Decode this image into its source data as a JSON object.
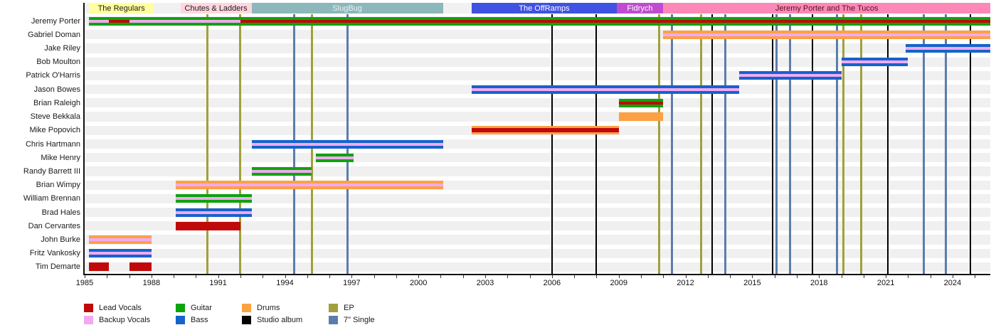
{
  "chart_data": {
    "type": "timeline",
    "description": "Band member tenure timeline with release markers",
    "x_axis": {
      "start_year": 1985,
      "end_year": 2025.7,
      "tick_every_years": 1,
      "year_labels": [
        1985,
        1988,
        1991,
        1994,
        1997,
        2000,
        2003,
        2006,
        2009,
        2012,
        2015,
        2018,
        2021,
        2024
      ]
    },
    "eras": [
      {
        "label": "The Regulars",
        "start": 1985.2,
        "end": 1988.1,
        "bg": "#ffff9e",
        "fg": "#1a1a1a"
      },
      {
        "label": "Chutes & Ladders",
        "start": 1989.3,
        "end": 1992.5,
        "bg": "#ffd6df",
        "fg": "#1a1a1a"
      },
      {
        "label": "SlugBug",
        "start": 1992.5,
        "end": 2001.1,
        "bg": "#8cb7bb",
        "fg": "#eef3f3"
      },
      {
        "label": "The OffRamps",
        "start": 2002.4,
        "end": 2008.9,
        "bg": "#4052e2",
        "fg": "#ffffff"
      },
      {
        "label": "Fidrych",
        "start": 2008.9,
        "end": 2011.0,
        "bg": "#bf4ccf",
        "fg": "#ffffff"
      },
      {
        "label": "Jeremy Porter and The Tucos",
        "start": 2011.0,
        "end": 2025.7,
        "bg": "#fc88b8",
        "fg": "#58121b"
      }
    ],
    "members": [
      {
        "name": "Jeremy Porter",
        "bars": [
          {
            "start": 1985.2,
            "end": 2025.7,
            "role": "guitar"
          }
        ],
        "stripes": [
          {
            "start": 1985.2,
            "end": 1986.1,
            "role": "backup_vocals"
          },
          {
            "start": 1986.1,
            "end": 1987.0,
            "role": "lead_vocals"
          },
          {
            "start": 1987.0,
            "end": 1992.0,
            "role": "backup_vocals"
          },
          {
            "start": 1992.0,
            "end": 2025.7,
            "role": "lead_vocals"
          }
        ]
      },
      {
        "name": "Gabriel Doman",
        "bars": [
          {
            "start": 2011.0,
            "end": 2025.7,
            "role": "drums"
          }
        ],
        "stripes": [
          {
            "start": 2011.0,
            "end": 2025.7,
            "role": "backup_vocals"
          }
        ]
      },
      {
        "name": "Jake Riley",
        "bars": [
          {
            "start": 2021.9,
            "end": 2025.7,
            "role": "bass"
          }
        ],
        "stripes": [
          {
            "start": 2021.9,
            "end": 2025.7,
            "role": "backup_vocals"
          }
        ]
      },
      {
        "name": "Bob Moulton",
        "bars": [
          {
            "start": 2019.0,
            "end": 2022.0,
            "role": "bass"
          }
        ],
        "stripes": [
          {
            "start": 2019.0,
            "end": 2022.0,
            "role": "backup_vocals"
          }
        ]
      },
      {
        "name": "Patrick O'Harris",
        "bars": [
          {
            "start": 2014.4,
            "end": 2019.0,
            "role": "bass"
          }
        ],
        "stripes": [
          {
            "start": 2014.4,
            "end": 2019.0,
            "role": "backup_vocals"
          }
        ]
      },
      {
        "name": "Jason Bowes",
        "bars": [
          {
            "start": 2002.4,
            "end": 2014.4,
            "role": "bass"
          }
        ],
        "stripes": [
          {
            "start": 2002.4,
            "end": 2014.4,
            "role": "backup_vocals"
          }
        ]
      },
      {
        "name": "Brian Raleigh",
        "bars": [
          {
            "start": 2009.0,
            "end": 2011.0,
            "role": "guitar"
          }
        ],
        "stripes": [
          {
            "start": 2009.0,
            "end": 2011.0,
            "role": "lead_vocals"
          }
        ]
      },
      {
        "name": "Steve Bekkala",
        "bars": [
          {
            "start": 2009.0,
            "end": 2011.0,
            "role": "drums"
          }
        ],
        "stripes": []
      },
      {
        "name": "Mike Popovich",
        "bars": [
          {
            "start": 2002.4,
            "end": 2009.0,
            "role": "drums"
          }
        ],
        "stripes": [
          {
            "start": 2002.4,
            "end": 2009.0,
            "role": "lead_vocals",
            "weight": "thick"
          }
        ]
      },
      {
        "name": "Chris Hartmann",
        "bars": [
          {
            "start": 1992.5,
            "end": 2001.1,
            "role": "bass"
          }
        ],
        "stripes": [
          {
            "start": 1992.5,
            "end": 2001.1,
            "role": "backup_vocals"
          }
        ]
      },
      {
        "name": "Mike Henry",
        "bars": [
          {
            "start": 1995.4,
            "end": 1997.1,
            "role": "guitar"
          }
        ],
        "stripes": [
          {
            "start": 1995.4,
            "end": 1997.1,
            "role": "backup_vocals"
          }
        ]
      },
      {
        "name": "Randy Barrett III",
        "bars": [
          {
            "start": 1992.5,
            "end": 1995.2,
            "role": "guitar"
          }
        ],
        "stripes": [
          {
            "start": 1992.5,
            "end": 1995.2,
            "role": "backup_vocals"
          }
        ]
      },
      {
        "name": "Brian Wimpy",
        "bars": [
          {
            "start": 1989.1,
            "end": 2001.1,
            "role": "drums"
          }
        ],
        "stripes": [
          {
            "start": 1989.1,
            "end": 2001.1,
            "role": "backup_vocals"
          }
        ]
      },
      {
        "name": "William Brennan",
        "bars": [
          {
            "start": 1989.1,
            "end": 1992.5,
            "role": "guitar"
          }
        ],
        "stripes": [
          {
            "start": 1989.1,
            "end": 1992.5,
            "role": "backup_vocals"
          }
        ]
      },
      {
        "name": "Brad Hales",
        "bars": [
          {
            "start": 1989.1,
            "end": 1992.5,
            "role": "bass"
          }
        ],
        "stripes": [
          {
            "start": 1989.1,
            "end": 1992.5,
            "role": "backup_vocals"
          }
        ]
      },
      {
        "name": "Dan Cervantes",
        "bars": [
          {
            "start": 1989.1,
            "end": 1992.0,
            "role": "lead_vocals"
          }
        ],
        "stripes": []
      },
      {
        "name": "John Burke",
        "bars": [
          {
            "start": 1985.2,
            "end": 1988.0,
            "role": "drums"
          }
        ],
        "stripes": [
          {
            "start": 1985.2,
            "end": 1988.0,
            "role": "backup_vocals"
          }
        ]
      },
      {
        "name": "Fritz Vankosky",
        "bars": [
          {
            "start": 1985.2,
            "end": 1988.0,
            "role": "bass"
          }
        ],
        "stripes": [
          {
            "start": 1985.2,
            "end": 1988.0,
            "role": "backup_vocals"
          }
        ]
      },
      {
        "name": "Tim Demarte",
        "bars": [
          {
            "start": 1985.2,
            "end": 1986.1,
            "role": "lead_vocals"
          },
          {
            "start": 1987.0,
            "end": 1988.0,
            "role": "lead_vocals"
          }
        ],
        "stripes": []
      }
    ],
    "releases": [
      {
        "year": 1990.5,
        "type": "ep"
      },
      {
        "year": 1992.0,
        "type": "ep"
      },
      {
        "year": 1994.4,
        "type": "single_7"
      },
      {
        "year": 1995.2,
        "type": "ep"
      },
      {
        "year": 1996.8,
        "type": "single_7"
      },
      {
        "year": 2006.0,
        "type": "studio_album"
      },
      {
        "year": 2008.0,
        "type": "studio_album"
      },
      {
        "year": 2010.8,
        "type": "ep"
      },
      {
        "year": 2011.4,
        "type": "single_7"
      },
      {
        "year": 2012.7,
        "type": "ep"
      },
      {
        "year": 2013.2,
        "type": "studio_album"
      },
      {
        "year": 2013.8,
        "type": "single_7"
      },
      {
        "year": 2015.9,
        "type": "studio_album"
      },
      {
        "year": 2016.1,
        "type": "single_7"
      },
      {
        "year": 2016.7,
        "type": "single_7"
      },
      {
        "year": 2017.7,
        "type": "studio_album"
      },
      {
        "year": 2018.8,
        "type": "single_7"
      },
      {
        "year": 2019.1,
        "type": "ep"
      },
      {
        "year": 2019.9,
        "type": "ep"
      },
      {
        "year": 2021.1,
        "type": "studio_album"
      },
      {
        "year": 2022.7,
        "type": "single_7"
      },
      {
        "year": 2023.7,
        "type": "single_7"
      },
      {
        "year": 2024.8,
        "type": "studio_album"
      }
    ],
    "colors": {
      "lead_vocals": "#c00a0a",
      "backup_vocals": "#f2a9f2",
      "guitar": "#0ca40c",
      "bass": "#1563cb",
      "drums": "#fca143",
      "ep": "#a0a03c",
      "studio_album": "#000000",
      "single_7": "#5b7dab"
    },
    "legend": {
      "columns": [
        [
          {
            "label": "Lead Vocals",
            "color": "lead_vocals"
          },
          {
            "label": "Backup Vocals",
            "color": "backup_vocals"
          }
        ],
        [
          {
            "label": "Guitar",
            "color": "guitar"
          },
          {
            "label": "Bass",
            "color": "bass"
          }
        ],
        [
          {
            "label": "Drums",
            "color": "drums"
          },
          {
            "label": "Studio album",
            "color": "studio_album"
          }
        ],
        [
          {
            "label": "EP",
            "color": "ep"
          },
          {
            "label": "7\" Single",
            "color": "single_7"
          }
        ]
      ]
    }
  }
}
